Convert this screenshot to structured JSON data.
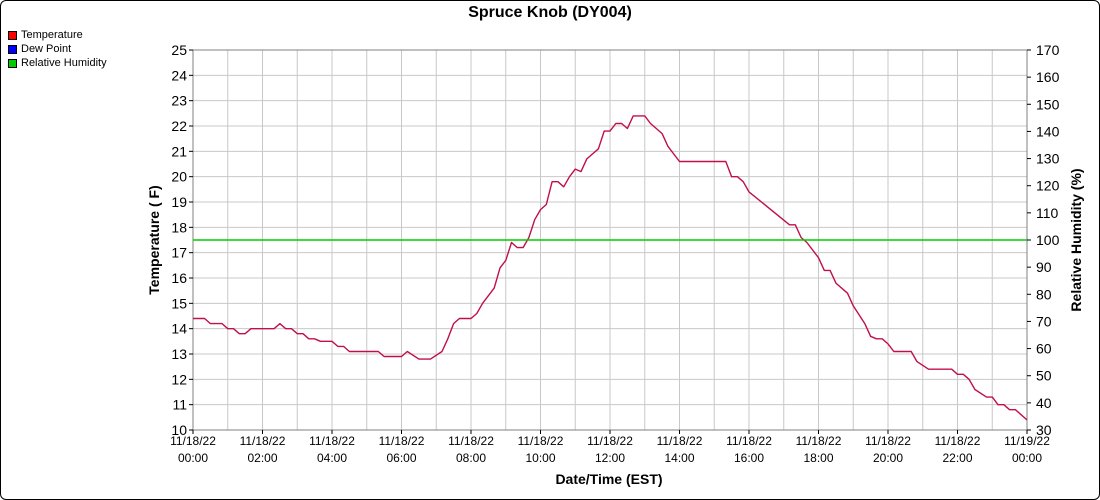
{
  "chart_data": {
    "type": "line",
    "title": "Spruce Knob (DY004)",
    "xlabel": "Date/Time (EST)",
    "ylabel": "Temperature ( F)",
    "y2label": "Relative Humidity (%)",
    "ylim": [
      10,
      25
    ],
    "y2lim": [
      30,
      170
    ],
    "yticks": [
      "10",
      "11",
      "12",
      "13",
      "14",
      "15",
      "16",
      "17",
      "18",
      "19",
      "20",
      "21",
      "22",
      "23",
      "24",
      "25"
    ],
    "y2ticks": [
      "30",
      "40",
      "50",
      "60",
      "70",
      "80",
      "90",
      "100",
      "110",
      "120",
      "130",
      "140",
      "150",
      "160",
      "170"
    ],
    "xticks": [
      {
        "date": "11/18/22",
        "time": "00:00"
      },
      {
        "date": "11/18/22",
        "time": "02:00"
      },
      {
        "date": "11/18/22",
        "time": "04:00"
      },
      {
        "date": "11/18/22",
        "time": "06:00"
      },
      {
        "date": "11/18/22",
        "time": "08:00"
      },
      {
        "date": "11/18/22",
        "time": "10:00"
      },
      {
        "date": "11/18/22",
        "time": "12:00"
      },
      {
        "date": "11/18/22",
        "time": "14:00"
      },
      {
        "date": "11/18/22",
        "time": "16:00"
      },
      {
        "date": "11/18/22",
        "time": "18:00"
      },
      {
        "date": "11/18/22",
        "time": "20:00"
      },
      {
        "date": "11/18/22",
        "time": "22:00"
      },
      {
        "date": "11/19/22",
        "time": "00:00"
      }
    ],
    "grid": true,
    "legend": [
      {
        "name": "Temperature",
        "color": "#ff0000"
      },
      {
        "name": "Dew Point",
        "color": "#0000ff"
      },
      {
        "name": "Relative Humidity",
        "color": "#00cc00"
      }
    ],
    "series": [
      {
        "name": "Temperature",
        "color": "#c0104a",
        "points": [
          [
            "11/18/22 00:00",
            14.4
          ],
          [
            "11/18/22 00:20",
            14.4
          ],
          [
            "11/18/22 00:30",
            14.2
          ],
          [
            "11/18/22 00:50",
            14.2
          ],
          [
            "11/18/22 01:00",
            14.0
          ],
          [
            "11/18/22 01:10",
            14.0
          ],
          [
            "11/18/22 01:20",
            13.8
          ],
          [
            "11/18/22 01:30",
            13.8
          ],
          [
            "11/18/22 01:40",
            14.0
          ],
          [
            "11/18/22 02:20",
            14.0
          ],
          [
            "11/18/22 02:30",
            14.2
          ],
          [
            "11/18/22 02:40",
            14.0
          ],
          [
            "11/18/22 02:50",
            14.0
          ],
          [
            "11/18/22 03:00",
            13.8
          ],
          [
            "11/18/22 03:10",
            13.8
          ],
          [
            "11/18/22 03:20",
            13.6
          ],
          [
            "11/18/22 03:30",
            13.6
          ],
          [
            "11/18/22 03:40",
            13.5
          ],
          [
            "11/18/22 04:00",
            13.5
          ],
          [
            "11/18/22 04:10",
            13.3
          ],
          [
            "11/18/22 04:20",
            13.3
          ],
          [
            "11/18/22 04:30",
            13.1
          ],
          [
            "11/18/22 05:20",
            13.1
          ],
          [
            "11/18/22 05:30",
            12.9
          ],
          [
            "11/18/22 05:50",
            12.9
          ],
          [
            "11/18/22 06:00",
            12.9
          ],
          [
            "11/18/22 06:10",
            13.1
          ],
          [
            "11/18/22 06:30",
            12.8
          ],
          [
            "11/18/22 06:50",
            12.8
          ],
          [
            "11/18/22 07:10",
            13.1
          ],
          [
            "11/18/22 07:20",
            13.6
          ],
          [
            "11/18/22 07:30",
            14.2
          ],
          [
            "11/18/22 07:40",
            14.4
          ],
          [
            "11/18/22 08:00",
            14.4
          ],
          [
            "11/18/22 08:10",
            14.6
          ],
          [
            "11/18/22 08:20",
            15.0
          ],
          [
            "11/18/22 08:40",
            15.6
          ],
          [
            "11/18/22 08:50",
            16.4
          ],
          [
            "11/18/22 09:00",
            16.7
          ],
          [
            "11/18/22 09:10",
            17.4
          ],
          [
            "11/18/22 09:20",
            17.2
          ],
          [
            "11/18/22 09:30",
            17.2
          ],
          [
            "11/18/22 09:40",
            17.6
          ],
          [
            "11/18/22 09:50",
            18.3
          ],
          [
            "11/18/22 10:00",
            18.7
          ],
          [
            "11/18/22 10:10",
            18.9
          ],
          [
            "11/18/22 10:20",
            19.8
          ],
          [
            "11/18/22 10:30",
            19.8
          ],
          [
            "11/18/22 10:40",
            19.6
          ],
          [
            "11/18/22 10:50",
            20.0
          ],
          [
            "11/18/22 11:00",
            20.3
          ],
          [
            "11/18/22 11:10",
            20.2
          ],
          [
            "11/18/22 11:20",
            20.7
          ],
          [
            "11/18/22 11:30",
            20.9
          ],
          [
            "11/18/22 11:40",
            21.1
          ],
          [
            "11/18/22 11:50",
            21.8
          ],
          [
            "11/18/22 12:00",
            21.8
          ],
          [
            "11/18/22 12:10",
            22.1
          ],
          [
            "11/18/22 12:20",
            22.1
          ],
          [
            "11/18/22 12:30",
            21.9
          ],
          [
            "11/18/22 12:40",
            22.4
          ],
          [
            "11/18/22 13:00",
            22.4
          ],
          [
            "11/18/22 13:10",
            22.1
          ],
          [
            "11/18/22 13:20",
            21.9
          ],
          [
            "11/18/22 13:30",
            21.7
          ],
          [
            "11/18/22 13:40",
            21.2
          ],
          [
            "11/18/22 14:00",
            20.6
          ],
          [
            "11/18/22 15:20",
            20.6
          ],
          [
            "11/18/22 15:30",
            20.0
          ],
          [
            "11/18/22 15:40",
            20.0
          ],
          [
            "11/18/22 15:50",
            19.8
          ],
          [
            "11/18/22 16:00",
            19.4
          ],
          [
            "11/18/22 17:10",
            18.1
          ],
          [
            "11/18/22 17:20",
            18.1
          ],
          [
            "11/18/22 17:30",
            17.6
          ],
          [
            "11/18/22 17:40",
            17.4
          ],
          [
            "11/18/22 18:00",
            16.8
          ],
          [
            "11/18/22 18:10",
            16.3
          ],
          [
            "11/18/22 18:20",
            16.3
          ],
          [
            "11/18/22 18:30",
            15.8
          ],
          [
            "11/18/22 18:50",
            15.4
          ],
          [
            "11/18/22 19:00",
            14.9
          ],
          [
            "11/18/22 19:20",
            14.2
          ],
          [
            "11/18/22 19:30",
            13.7
          ],
          [
            "11/18/22 19:40",
            13.6
          ],
          [
            "11/18/22 19:50",
            13.6
          ],
          [
            "11/18/22 20:00",
            13.4
          ],
          [
            "11/18/22 20:10",
            13.1
          ],
          [
            "11/18/22 20:40",
            13.1
          ],
          [
            "11/18/22 20:50",
            12.7
          ],
          [
            "11/18/22 21:10",
            12.4
          ],
          [
            "11/18/22 21:50",
            12.4
          ],
          [
            "11/18/22 22:00",
            12.2
          ],
          [
            "11/18/22 22:10",
            12.2
          ],
          [
            "11/18/22 22:20",
            12.0
          ],
          [
            "11/18/22 22:30",
            11.6
          ],
          [
            "11/18/22 22:50",
            11.3
          ],
          [
            "11/18/22 23:00",
            11.3
          ],
          [
            "11/18/22 23:10",
            11.0
          ],
          [
            "11/18/22 23:20",
            11.0
          ],
          [
            "11/18/22 23:30",
            10.8
          ],
          [
            "11/18/22 23:40",
            10.8
          ],
          [
            "11/18/22 23:50",
            10.6
          ],
          [
            "11/19/22 00:00",
            10.4
          ]
        ]
      },
      {
        "name": "Relative Humidity",
        "color": "#00cc00",
        "axis": "right",
        "points": [
          [
            "11/18/22 00:00",
            100
          ],
          [
            "11/19/22 00:00",
            100
          ]
        ]
      }
    ]
  }
}
